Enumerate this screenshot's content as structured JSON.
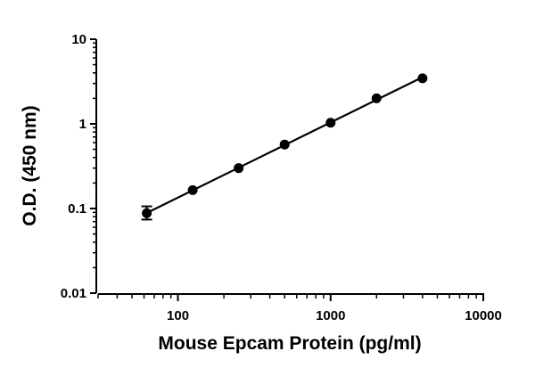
{
  "chart_data": {
    "type": "scatter",
    "title": "",
    "xlabel": "Mouse Epcam Protein (pg/ml)",
    "ylabel": "O.D. (450 nm)",
    "x_scale": "log",
    "y_scale": "log",
    "xlim": [
      30,
      10000
    ],
    "ylim": [
      0.01,
      10
    ],
    "x_ticks": [
      {
        "value": 100,
        "label": "100"
      },
      {
        "value": 1000,
        "label": "1000"
      },
      {
        "value": 10000,
        "label": "10000"
      }
    ],
    "y_ticks": [
      {
        "value": 10,
        "label": "10"
      },
      {
        "value": 1,
        "label": "1"
      },
      {
        "value": 0.1,
        "label": "0.1"
      },
      {
        "value": 0.01,
        "label": "0.01"
      }
    ],
    "grid": false,
    "legend": "none",
    "colors": {
      "marker": "#000000",
      "line": "#000000",
      "axis": "#000000"
    },
    "series": [
      {
        "points": [
          {
            "x": 62.5,
            "y": 0.088,
            "err_low": 0.074,
            "err_high": 0.106
          },
          {
            "x": 125,
            "y": 0.165
          },
          {
            "x": 250,
            "y": 0.3
          },
          {
            "x": 500,
            "y": 0.57
          },
          {
            "x": 1000,
            "y": 1.03
          },
          {
            "x": 2000,
            "y": 2.0
          },
          {
            "x": 4000,
            "y": 3.45
          }
        ],
        "fit_line": {
          "x_start": 62.5,
          "x_end": 4000
        }
      }
    ]
  }
}
